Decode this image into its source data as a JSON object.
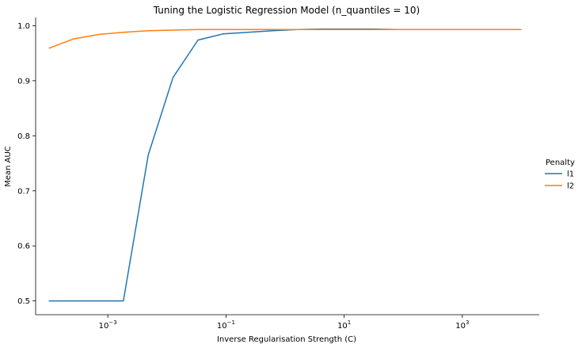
{
  "chart_data": {
    "type": "line",
    "title": "Tuning the Logistic Regression Model (n_quantiles = 10)",
    "xlabel": "Inverse Regularisation Strength (C)",
    "ylabel": "Mean AUC",
    "xscale": "log",
    "xlim": [
      6e-05,
      20000
    ],
    "ylim": [
      0.475,
      1.015
    ],
    "x_ticks": [
      {
        "value": 0.001,
        "label_base": "10",
        "label_exp": "−3"
      },
      {
        "value": 0.1,
        "label_base": "10",
        "label_exp": "−1"
      },
      {
        "value": 10,
        "label_base": "10",
        "label_exp": "1"
      },
      {
        "value": 1000,
        "label_base": "10",
        "label_exp": "3"
      }
    ],
    "y_ticks": [
      {
        "value": 0.5,
        "label": "0.5"
      },
      {
        "value": 0.6,
        "label": "0.6"
      },
      {
        "value": 0.7,
        "label": "0.7"
      },
      {
        "value": 0.8,
        "label": "0.8"
      },
      {
        "value": 0.9,
        "label": "0.9"
      },
      {
        "value": 1.0,
        "label": "1.0"
      }
    ],
    "grid": false,
    "legend": {
      "title": "Penalty",
      "placement": "right"
    },
    "x": [
      0.0001,
      0.000264,
      0.000695,
      0.00183,
      0.00483,
      0.0127,
      0.0336,
      0.0886,
      0.234,
      0.616,
      1.62,
      4.28,
      11.3,
      29.8,
      78.5,
      207,
      546,
      1438,
      3793,
      10000
    ],
    "series": [
      {
        "name": "l1",
        "color": "#1f77b4",
        "values": [
          0.5,
          0.5,
          0.5,
          0.5,
          0.765,
          0.906,
          0.974,
          0.985,
          0.988,
          0.991,
          0.993,
          0.994,
          0.994,
          0.994,
          0.993,
          0.993,
          0.993,
          0.993,
          0.993,
          0.993
        ]
      },
      {
        "name": "l2",
        "color": "#ff7f0e",
        "values": [
          0.959,
          0.976,
          0.984,
          0.988,
          0.991,
          0.992,
          0.993,
          0.993,
          0.993,
          0.993,
          0.993,
          0.993,
          0.993,
          0.993,
          0.993,
          0.993,
          0.993,
          0.993,
          0.993,
          0.993
        ]
      }
    ]
  }
}
